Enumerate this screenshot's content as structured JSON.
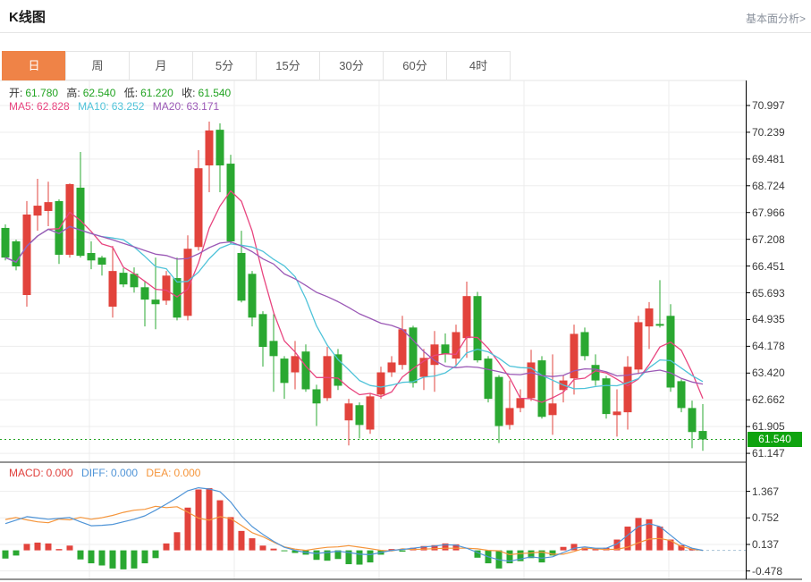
{
  "header": {
    "title": "K线图",
    "link": "基本面分析>"
  },
  "tabs": {
    "selected": "日",
    "items": [
      "日",
      "周",
      "月",
      "5分",
      "15分",
      "30分",
      "60分",
      "4时"
    ]
  },
  "ohlc_row": {
    "open_label": "开:",
    "open": "61.780",
    "high_label": "高:",
    "high": "62.540",
    "low_label": "低:",
    "low": "61.220",
    "close_label": "收:",
    "close": "61.540"
  },
  "ma_row": {
    "ma5_label": "MA5:",
    "ma5": "62.828",
    "ma10_label": "MA10:",
    "ma10": "63.252",
    "ma20_label": "MA20:",
    "ma20": "63.171"
  },
  "macd_row": {
    "macd_label": "MACD:",
    "macd": "0.000",
    "diff_label": "DIFF:",
    "diff": "0.000",
    "dea_label": "DEA:",
    "dea": "0.000"
  },
  "current_price": "61.540",
  "colors": {
    "up": "#e2433c",
    "down": "#2aa831",
    "ma5": "#e8457f",
    "ma10": "#4fc3d9",
    "ma20": "#9b59b6",
    "diff_line": "#4f94d7",
    "dea_line": "#f5953b",
    "macd_label": "#e0403c",
    "tab_active_bg": "#ef8347",
    "badge_bg": "#0fa30f",
    "price_line": "#21a321",
    "grid": "#ededed",
    "axis": "#000000"
  },
  "chart_data": {
    "type": "candlestick",
    "panels": [
      "price",
      "macd"
    ],
    "up_means": "rising (red)",
    "down_means": "falling (green)",
    "price_axis_ticks": [
      "70.997",
      "70.239",
      "69.481",
      "68.724",
      "67.966",
      "67.208",
      "66.451",
      "65.693",
      "64.935",
      "64.178",
      "63.420",
      "62.662",
      "61.905",
      "61.147"
    ],
    "price_axis_range": [
      61.147,
      70.997
    ],
    "current_price_value": 61.54,
    "macd_axis_ticks": [
      "1.367",
      "0.752",
      "0.137",
      "-0.478"
    ],
    "macd_axis_range": [
      -0.478,
      1.367
    ],
    "ma_periods": [
      5,
      10,
      20
    ],
    "candle_format": [
      "open",
      "close",
      "high",
      "low"
    ],
    "candles": [
      [
        67.53,
        66.69,
        67.63,
        66.61
      ],
      [
        67.15,
        66.44,
        67.2,
        66.33
      ],
      [
        65.63,
        67.91,
        68.29,
        65.3
      ],
      [
        67.88,
        68.16,
        68.92,
        67.45
      ],
      [
        68.01,
        68.26,
        68.84,
        67.58
      ],
      [
        68.29,
        66.77,
        68.34,
        66.51
      ],
      [
        66.77,
        68.77,
        68.79,
        66.69
      ],
      [
        68.67,
        66.74,
        69.68,
        66.69
      ],
      [
        66.82,
        66.61,
        67.15,
        66.36
      ],
      [
        66.69,
        66.49,
        66.74,
        66.18
      ],
      [
        65.3,
        66.31,
        67.02,
        64.99
      ],
      [
        66.26,
        65.93,
        66.39,
        65.85
      ],
      [
        66.23,
        65.85,
        66.41,
        65.7
      ],
      [
        65.85,
        65.5,
        66.01,
        64.74
      ],
      [
        65.5,
        65.37,
        66.69,
        64.66
      ],
      [
        65.47,
        66.18,
        66.31,
        65.35
      ],
      [
        66.11,
        64.99,
        66.69,
        64.91
      ],
      [
        65.04,
        66.94,
        67.32,
        64.91
      ],
      [
        66.99,
        69.22,
        69.73,
        66.89
      ],
      [
        69.3,
        70.29,
        70.54,
        68.54
      ],
      [
        70.31,
        69.3,
        70.49,
        68.54
      ],
      [
        69.35,
        67.15,
        69.6,
        67.07
      ],
      [
        66.82,
        65.47,
        67.45,
        65.42
      ],
      [
        66.23,
        64.99,
        66.31,
        64.74
      ],
      [
        65.09,
        64.16,
        65.17,
        63.6
      ],
      [
        64.33,
        63.9,
        65.09,
        62.89
      ],
      [
        63.83,
        63.14,
        63.9,
        62.69
      ],
      [
        63.44,
        63.9,
        64.33,
        62.96
      ],
      [
        64.03,
        62.96,
        64.23,
        62.89
      ],
      [
        62.96,
        62.56,
        63.09,
        61.92
      ],
      [
        62.71,
        63.9,
        64.16,
        62.63
      ],
      [
        63.95,
        63.06,
        64.1,
        62.94
      ],
      [
        62.08,
        62.56,
        62.69,
        61.37
      ],
      [
        62.51,
        61.95,
        62.59,
        61.57
      ],
      [
        61.82,
        62.76,
        62.84,
        61.7
      ],
      [
        62.81,
        63.44,
        63.6,
        62.69
      ],
      [
        63.44,
        63.72,
        63.9,
        63.31
      ],
      [
        63.65,
        64.66,
        65.04,
        63.52
      ],
      [
        64.71,
        63.14,
        64.76,
        63.01
      ],
      [
        63.31,
        63.85,
        64.1,
        62.94
      ],
      [
        63.65,
        64.23,
        64.61,
        62.89
      ],
      [
        64.23,
        63.95,
        64.54,
        63.72
      ],
      [
        63.83,
        64.58,
        64.79,
        63.6
      ],
      [
        64.41,
        65.6,
        66.01,
        63.85
      ],
      [
        65.6,
        63.78,
        65.72,
        63.72
      ],
      [
        63.83,
        62.69,
        63.9,
        62.59
      ],
      [
        63.31,
        61.92,
        63.36,
        61.44
      ],
      [
        61.95,
        62.43,
        63.21,
        61.82
      ],
      [
        62.43,
        62.71,
        62.96,
        62.31
      ],
      [
        62.71,
        63.72,
        64.08,
        62.63
      ],
      [
        63.78,
        62.18,
        63.9,
        62.13
      ],
      [
        62.23,
        62.56,
        63.95,
        61.67
      ],
      [
        62.94,
        63.21,
        63.34,
        62.59
      ],
      [
        63.27,
        64.53,
        64.79,
        62.81
      ],
      [
        64.58,
        63.9,
        64.71,
        63.78
      ],
      [
        63.65,
        63.21,
        63.95,
        63.06
      ],
      [
        63.27,
        62.26,
        63.34,
        62.13
      ],
      [
        62.23,
        62.33,
        62.96,
        61.62
      ],
      [
        62.31,
        63.6,
        63.9,
        61.82
      ],
      [
        63.52,
        64.86,
        65.04,
        63.39
      ],
      [
        64.74,
        65.25,
        65.43,
        64.1
      ],
      [
        64.81,
        64.76,
        66.05,
        64.71
      ],
      [
        65.04,
        63.01,
        65.37,
        62.89
      ],
      [
        63.19,
        62.43,
        63.24,
        62.31
      ],
      [
        62.43,
        61.75,
        62.64,
        61.29
      ],
      [
        61.78,
        61.54,
        62.54,
        61.22
      ]
    ],
    "macd_hist": [
      -0.19,
      -0.12,
      0.15,
      0.18,
      0.16,
      0.03,
      0.11,
      -0.21,
      -0.3,
      -0.35,
      -0.42,
      -0.44,
      -0.42,
      -0.3,
      -0.18,
      0.16,
      0.42,
      0.99,
      1.41,
      1.44,
      1.16,
      0.77,
      0.45,
      0.28,
      0.11,
      0.04,
      -0.02,
      -0.06,
      -0.1,
      -0.22,
      -0.24,
      -0.2,
      -0.32,
      -0.33,
      -0.28,
      -0.1,
      0.03,
      -0.03,
      0.06,
      0.1,
      0.12,
      0.16,
      0.14,
      0.0,
      -0.17,
      -0.3,
      -0.42,
      -0.3,
      -0.25,
      -0.18,
      -0.28,
      -0.12,
      0.08,
      0.15,
      0.06,
      0.03,
      0.06,
      0.25,
      0.55,
      0.75,
      0.72,
      0.55,
      0.25,
      0.12,
      0.04,
      0.0
    ],
    "macd_diff": [
      0.62,
      0.7,
      0.78,
      0.75,
      0.72,
      0.74,
      0.76,
      0.66,
      0.57,
      0.58,
      0.6,
      0.66,
      0.72,
      0.8,
      0.93,
      1.07,
      1.22,
      1.38,
      1.45,
      1.42,
      1.36,
      1.12,
      0.8,
      0.55,
      0.37,
      0.21,
      0.07,
      0.0,
      -0.05,
      -0.07,
      -0.05,
      -0.02,
      -0.05,
      -0.09,
      -0.1,
      -0.05,
      0.0,
      0.02,
      0.05,
      0.08,
      0.1,
      0.13,
      0.12,
      0.05,
      -0.05,
      -0.15,
      -0.22,
      -0.25,
      -0.2,
      -0.15,
      -0.18,
      -0.15,
      -0.05,
      0.05,
      0.08,
      0.05,
      0.05,
      0.15,
      0.35,
      0.55,
      0.62,
      0.55,
      0.35,
      0.15,
      0.05,
      0.0
    ]
  }
}
